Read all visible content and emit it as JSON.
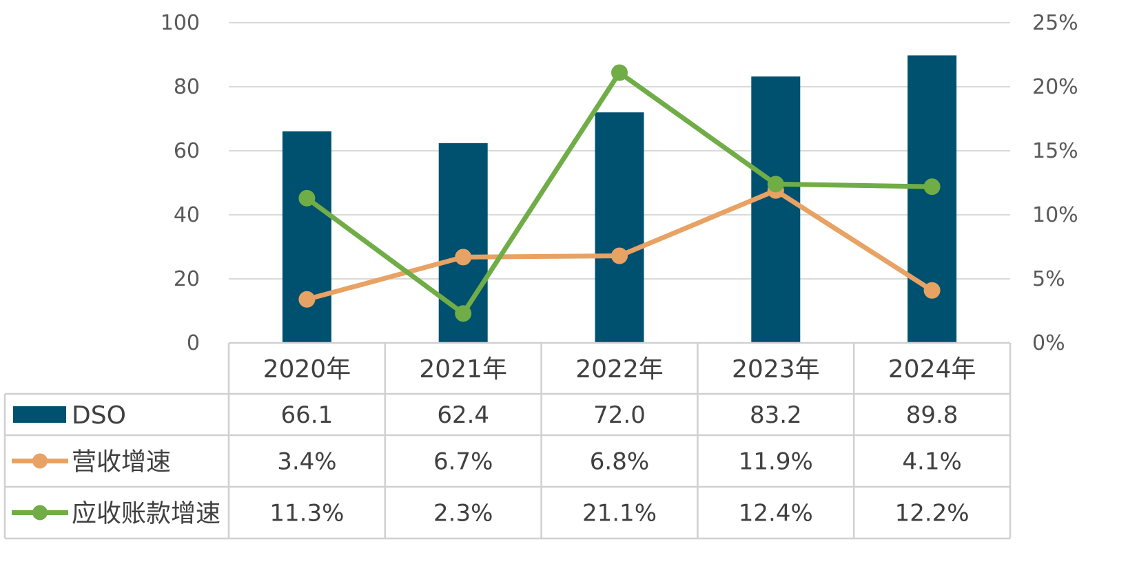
{
  "chart_data": {
    "type": "bar",
    "categories": [
      "2020年",
      "2021年",
      "2022年",
      "2023年",
      "2024年"
    ],
    "series": [
      {
        "name": "DSO",
        "type": "bar",
        "axis": "left",
        "color": "#00506F",
        "values": [
          66.1,
          62.4,
          72.0,
          83.2,
          89.8
        ],
        "labels": [
          "66.1",
          "62.4",
          "72.0",
          "83.2",
          "89.8"
        ]
      },
      {
        "name": "营收增速",
        "type": "line",
        "axis": "right",
        "color": "#E8A263",
        "values": [
          3.4,
          6.7,
          6.8,
          11.9,
          4.1
        ],
        "labels": [
          "3.4%",
          "6.7%",
          "6.8%",
          "11.9%",
          "4.1%"
        ]
      },
      {
        "name": "应收账款增速",
        "type": "line",
        "axis": "right",
        "color": "#70AD47",
        "values": [
          11.3,
          2.3,
          21.1,
          12.4,
          12.2
        ],
        "labels": [
          "11.3%",
          "2.3%",
          "21.1%",
          "12.4%",
          "12.2%"
        ]
      }
    ],
    "y_left": {
      "min": 0,
      "max": 100,
      "ticks": [
        "0",
        "20",
        "40",
        "60",
        "80",
        "100"
      ]
    },
    "y_right": {
      "min": 0,
      "max": 25,
      "ticks": [
        "0%",
        "5%",
        "10%",
        "15%",
        "20%",
        "25%"
      ]
    },
    "grid": true,
    "legend": "data-table-left"
  }
}
